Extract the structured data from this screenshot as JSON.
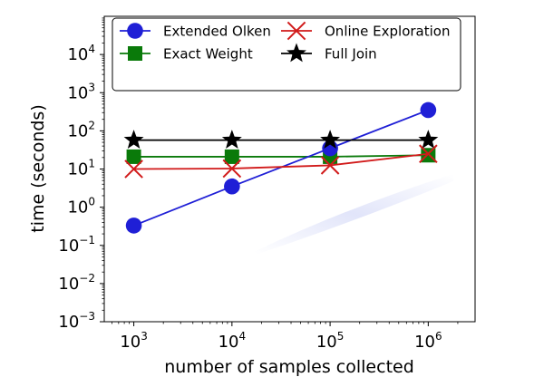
{
  "chart_data": {
    "type": "line",
    "title": "",
    "xlabel": "number of samples collected",
    "ylabel": "time (seconds)",
    "x_scale": "log",
    "y_scale": "log",
    "x": [
      1000,
      10000,
      100000,
      1000000
    ],
    "xlim": [
      500,
      3000000
    ],
    "ylim": [
      0.001,
      100000
    ],
    "x_ticks": [
      {
        "value": 1000,
        "base": "10",
        "exp": "3"
      },
      {
        "value": 10000,
        "base": "10",
        "exp": "4"
      },
      {
        "value": 100000,
        "base": "10",
        "exp": "5"
      },
      {
        "value": 1000000,
        "base": "10",
        "exp": "6"
      }
    ],
    "y_ticks": [
      {
        "value": 0.001,
        "base": "10",
        "exp": "−3"
      },
      {
        "value": 0.01,
        "base": "10",
        "exp": "−2"
      },
      {
        "value": 0.1,
        "base": "10",
        "exp": "−1"
      },
      {
        "value": 1,
        "base": "10",
        "exp": "0"
      },
      {
        "value": 10,
        "base": "10",
        "exp": "1"
      },
      {
        "value": 100,
        "base": "10",
        "exp": "2"
      },
      {
        "value": 1000,
        "base": "10",
        "exp": "3"
      },
      {
        "value": 10000,
        "base": "10",
        "exp": "4"
      }
    ],
    "grid": false,
    "legend_position": "top",
    "series": [
      {
        "name": "Extended Olken",
        "values": [
          0.33,
          3.5,
          35,
          350
        ],
        "color": "#1f1fd6",
        "marker": "circle"
      },
      {
        "name": "Exact Weight",
        "values": [
          21,
          21,
          21,
          23
        ],
        "color": "#0a7a0a",
        "marker": "square"
      },
      {
        "name": "Online Exploration",
        "values": [
          10,
          10.3,
          12.5,
          25
        ],
        "color": "#d11a1a",
        "marker": "x"
      },
      {
        "name": "Full Join",
        "values": [
          57,
          57,
          57,
          57
        ],
        "color": "#000000",
        "marker": "star"
      }
    ]
  }
}
